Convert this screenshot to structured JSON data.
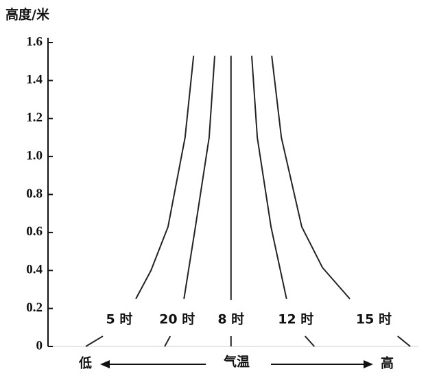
{
  "chart_data": {
    "type": "line",
    "y_label": "高度/米",
    "x_label": "气温",
    "x_low": "低",
    "x_high": "高",
    "xlim": [
      0,
      100
    ],
    "ylim": [
      0,
      1.6
    ],
    "yticks": [
      0,
      0.2,
      0.4,
      0.6,
      0.8,
      {
        "value": 1,
        "label": "1.0"
      },
      1.2,
      1.4,
      1.6
    ],
    "series": [
      {
        "name": "5 时",
        "color": "#222",
        "x": [
          39.3,
          37,
          32.4,
          27.8,
          23.7,
          null,
          14.8,
          10.2
        ],
        "values": [
          1.53,
          1.1,
          0.63,
          0.4,
          0.25,
          null,
          0.054,
          0
        ]
      },
      {
        "name": "20 时",
        "color": "#222",
        "x": [
          45,
          43.5,
          39.8,
          36.7,
          null,
          33,
          31.5
        ],
        "values": [
          1.53,
          1.1,
          0.63,
          0.25,
          null,
          0.054,
          0
        ]
      },
      {
        "name": "8 时",
        "color": "#222",
        "x": [
          49.4,
          49.4,
          null,
          49.4,
          49.4
        ],
        "values": [
          1.53,
          0.245,
          null,
          0.054,
          0
        ]
      },
      {
        "name": "12 时",
        "color": "#222",
        "x": [
          55,
          56.5,
          60.2,
          64.4,
          null,
          69.4,
          71.9
        ],
        "values": [
          1.53,
          1.1,
          0.63,
          0.25,
          null,
          0.054,
          0
        ]
      },
      {
        "name": "15 时",
        "color": "#222",
        "x": [
          60.4,
          63,
          68.5,
          74.1,
          81.5,
          null,
          94.4,
          97.8
        ],
        "values": [
          1.53,
          1.1,
          0.63,
          0.415,
          0.25,
          null,
          0.054,
          0
        ]
      }
    ]
  }
}
